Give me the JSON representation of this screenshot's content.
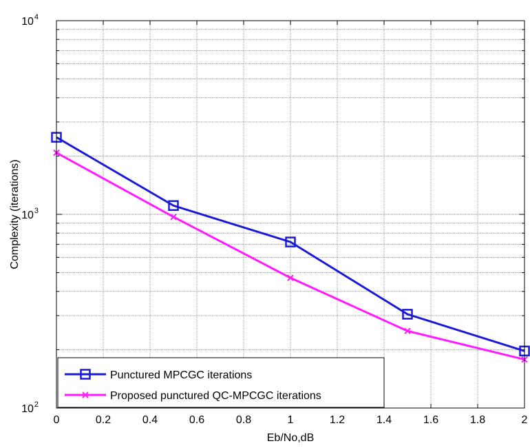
{
  "chart_data": {
    "type": "line",
    "title": "",
    "xlabel": "Eb/No,dB",
    "ylabel": "Complexity (iterations)",
    "xlim": [
      0,
      2
    ],
    "ylim": [
      100,
      10000
    ],
    "yscale": "log",
    "grid": true,
    "legend_position": "bottom-left",
    "x_ticks": [
      "0",
      "0.2",
      "0.4",
      "0.6",
      "0.8",
      "1",
      "1.2",
      "1.4",
      "1.6",
      "1.8",
      "2"
    ],
    "y_ticks": [
      {
        "base": "10",
        "exp": "2"
      },
      {
        "base": "10",
        "exp": "3"
      },
      {
        "base": "10",
        "exp": "4"
      }
    ],
    "series": [
      {
        "name": "Punctured MPCGC iterations",
        "color": "#1a1ad6",
        "marker": "square",
        "x": [
          0,
          0.5,
          1,
          1.5,
          2
        ],
        "y": [
          2500,
          1110,
          720,
          305,
          197
        ]
      },
      {
        "name": "Proposed punctured QC-MPCGC iterations",
        "color": "#ff1aff",
        "marker": "x",
        "x": [
          0,
          0.5,
          1,
          1.5,
          2
        ],
        "y": [
          2080,
          970,
          470,
          250,
          178
        ]
      }
    ]
  }
}
